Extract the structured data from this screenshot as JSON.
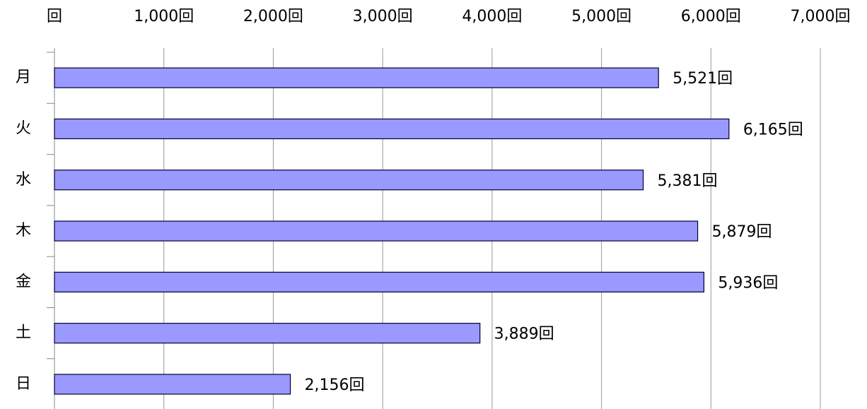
{
  "chart_data": {
    "type": "hbar",
    "categories": [
      "月",
      "火",
      "水",
      "木",
      "金",
      "土",
      "日"
    ],
    "values": [
      5521,
      6165,
      5381,
      5879,
      5936,
      3889,
      2156
    ],
    "value_labels": [
      "5,521回",
      "6,165回",
      "5,381回",
      "5,879回",
      "5,936回",
      "3,889回",
      "2,156回"
    ],
    "color": "#9999ff",
    "xlim": [
      0,
      7000
    ],
    "xticks": [
      {
        "value": 0,
        "label": "回"
      },
      {
        "value": 1000,
        "label": "1,000回"
      },
      {
        "value": 2000,
        "label": "2,000回"
      },
      {
        "value": 3000,
        "label": "3,000回"
      },
      {
        "value": 4000,
        "label": "4,000回"
      },
      {
        "value": 5000,
        "label": "5,000回"
      },
      {
        "value": 6000,
        "label": "6,000回"
      },
      {
        "value": 7000,
        "label": "7,000回"
      }
    ],
    "grid": true
  }
}
